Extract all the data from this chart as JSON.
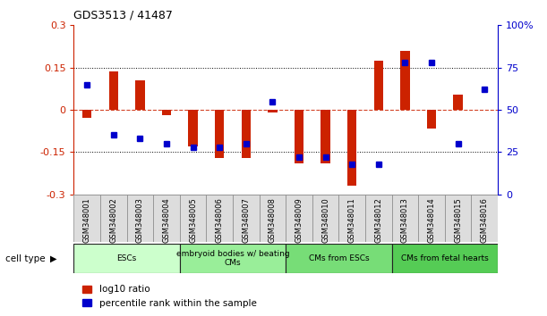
{
  "title": "GDS3513 / 41487",
  "samples": [
    "GSM348001",
    "GSM348002",
    "GSM348003",
    "GSM348004",
    "GSM348005",
    "GSM348006",
    "GSM348007",
    "GSM348008",
    "GSM348009",
    "GSM348010",
    "GSM348011",
    "GSM348012",
    "GSM348013",
    "GSM348014",
    "GSM348015",
    "GSM348016"
  ],
  "log10_ratio": [
    -0.03,
    0.135,
    0.105,
    -0.02,
    -0.13,
    -0.17,
    -0.17,
    -0.01,
    -0.19,
    -0.19,
    -0.27,
    0.175,
    0.21,
    -0.065,
    0.055,
    0.0
  ],
  "percentile_rank": [
    65,
    35,
    33,
    30,
    28,
    28,
    30,
    55,
    22,
    22,
    18,
    18,
    78,
    78,
    30,
    62
  ],
  "cell_type_groups": [
    {
      "label": "ESCs",
      "start": 0,
      "end": 3,
      "color": "#ccffcc"
    },
    {
      "label": "embryoid bodies w/ beating\nCMs",
      "start": 4,
      "end": 7,
      "color": "#99ee99"
    },
    {
      "label": "CMs from ESCs",
      "start": 8,
      "end": 11,
      "color": "#77dd77"
    },
    {
      "label": "CMs from fetal hearts",
      "start": 12,
      "end": 15,
      "color": "#55cc55"
    }
  ],
  "ylim_left": [
    -0.3,
    0.3
  ],
  "ylim_right": [
    0,
    100
  ],
  "yticks_left": [
    -0.3,
    -0.15,
    0,
    0.15,
    0.3
  ],
  "yticks_right": [
    0,
    25,
    50,
    75,
    100
  ],
  "ytick_labels_left": [
    "-0.3",
    "-0.15",
    "0",
    "0.15",
    "0.3"
  ],
  "ytick_labels_right": [
    "0",
    "25",
    "50",
    "75",
    "100%"
  ],
  "hlines_dotted": [
    -0.15,
    0.15
  ],
  "hline_zero_color": "#cc2200",
  "bar_color": "#cc2200",
  "dot_color": "#0000cc",
  "bg_color": "#ffffff",
  "sample_box_color": "#dddddd",
  "sample_box_edge": "#888888"
}
